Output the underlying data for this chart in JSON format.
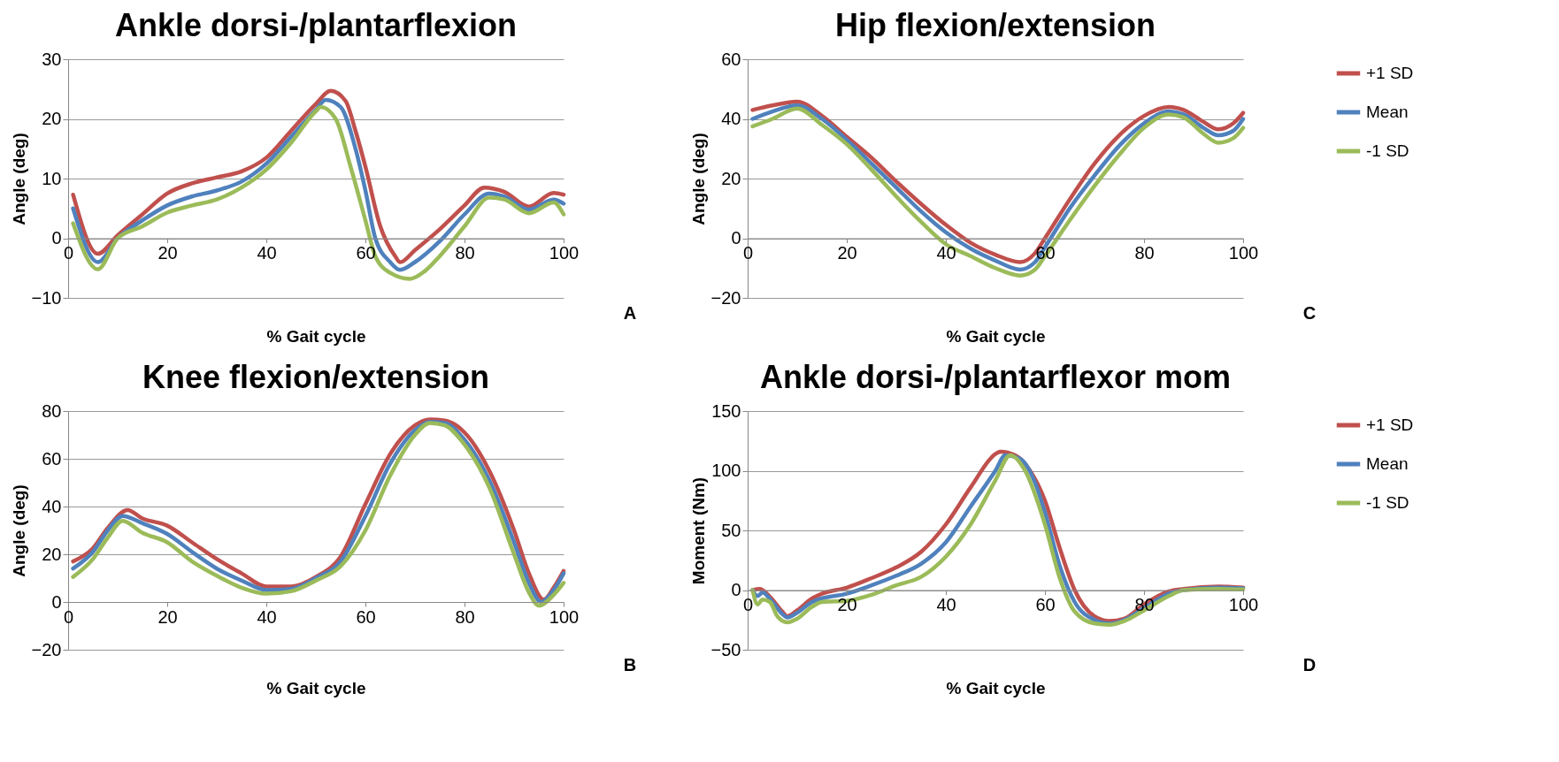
{
  "chart_data": [
    {
      "type": "line",
      "title": "Ankle dorsi-/plantarflexion",
      "xlabel": "% Gait cycle",
      "ylabel": "Angle (deg)",
      "xlim": [
        0,
        100
      ],
      "xticks": [
        0,
        20,
        40,
        60,
        80,
        100
      ],
      "ylim": [
        -10,
        30
      ],
      "yticks": [
        -10,
        0,
        10,
        20,
        30
      ],
      "grid": "y",
      "legend": "right",
      "annotations": [
        "A"
      ],
      "series": [
        {
          "name": "+1 SD",
          "color": "#c0504d",
          "x": [
            1,
            6,
            10,
            15,
            20,
            25,
            30,
            35,
            40,
            45,
            50,
            53,
            56,
            58,
            60,
            63,
            66,
            67,
            70,
            75,
            80,
            84,
            88,
            93,
            98,
            100
          ],
          "values": [
            7.3,
            -2.6,
            0.5,
            4,
            7.5,
            9.2,
            10.2,
            11.2,
            13.5,
            18,
            22.5,
            24.7,
            23,
            18,
            12,
            2,
            -3,
            -4,
            -2,
            1.5,
            5.5,
            8.5,
            7.8,
            5.3,
            7.6,
            7.3
          ]
        },
        {
          "name": "Mean",
          "color": "#4f81bd",
          "x": [
            1,
            6,
            10,
            15,
            20,
            25,
            30,
            35,
            40,
            45,
            50,
            52,
            55,
            58,
            60,
            62,
            65,
            67,
            70,
            75,
            80,
            85,
            88,
            93,
            98,
            100
          ],
          "values": [
            5,
            -4,
            0,
            3,
            5.5,
            7,
            8,
            9.5,
            12.5,
            17,
            21.5,
            23.2,
            22,
            15,
            8,
            0,
            -4,
            -5.3,
            -4,
            -0.5,
            4,
            7.5,
            7,
            4.8,
            6.5,
            5.8
          ]
        },
        {
          "name": "-1 SD",
          "color": "#9bbb59",
          "x": [
            1,
            6,
            10,
            15,
            20,
            25,
            30,
            35,
            40,
            45,
            50,
            51,
            54,
            57,
            60,
            62,
            65,
            69,
            72,
            75,
            80,
            85,
            88,
            93,
            98,
            100
          ],
          "values": [
            2.5,
            -5.2,
            0,
            2,
            4.3,
            5.5,
            6.5,
            8.5,
            11.5,
            16,
            21.3,
            22,
            20,
            12,
            3,
            -3,
            -5.8,
            -6.8,
            -5.5,
            -3,
            2,
            6.8,
            6.5,
            4.2,
            6,
            4
          ]
        }
      ]
    },
    {
      "type": "line",
      "title": "Hip flexion/extension",
      "xlabel": "% Gait cycle",
      "ylabel": "Angle (deg)",
      "xlim": [
        0,
        100
      ],
      "xticks": [
        0,
        20,
        40,
        60,
        80,
        100
      ],
      "ylim": [
        -20,
        60
      ],
      "yticks": [
        -20,
        0,
        20,
        40,
        60
      ],
      "grid": "y",
      "legend": "right",
      "annotations": [
        "C"
      ],
      "series": [
        {
          "name": "+1 SD",
          "color": "#c0504d",
          "x": [
            1,
            5,
            10,
            15,
            20,
            25,
            30,
            35,
            40,
            45,
            50,
            55,
            58,
            60,
            65,
            70,
            75,
            80,
            85,
            88,
            92,
            95,
            98,
            100
          ],
          "values": [
            43,
            44.5,
            45.8,
            41,
            34,
            27,
            19,
            11.5,
            4.5,
            -1.5,
            -5.5,
            -8,
            -5,
            0,
            13,
            25,
            34.5,
            41,
            44,
            43,
            39,
            36.5,
            38.5,
            42
          ]
        },
        {
          "name": "Mean",
          "color": "#4f81bd",
          "x": [
            1,
            5,
            10,
            15,
            20,
            25,
            30,
            35,
            40,
            45,
            50,
            55,
            58,
            60,
            65,
            70,
            75,
            80,
            85,
            88,
            92,
            95,
            98,
            100
          ],
          "values": [
            40,
            42.5,
            44.5,
            40,
            33,
            25,
            17,
            9,
            2,
            -3.5,
            -7.5,
            -10.5,
            -8,
            -3,
            10,
            21,
            31,
            38.5,
            42.5,
            41.5,
            37,
            34.5,
            36,
            40
          ]
        },
        {
          "name": "-1 SD",
          "color": "#9bbb59",
          "x": [
            1,
            5,
            10,
            15,
            20,
            25,
            30,
            35,
            40,
            45,
            50,
            55,
            58,
            60,
            65,
            70,
            75,
            80,
            85,
            88,
            92,
            95,
            98,
            100
          ],
          "values": [
            37.5,
            40,
            43.5,
            38,
            31.5,
            23,
            14,
            5.5,
            -2,
            -6,
            -10,
            -12.5,
            -10.5,
            -6,
            6,
            17.5,
            28,
            37,
            41.5,
            40.5,
            35,
            32,
            33.5,
            37
          ]
        }
      ]
    },
    {
      "type": "line",
      "title": "Knee flexion/extension",
      "xlabel": "% Gait cycle",
      "ylabel": "Angle (deg)",
      "xlim": [
        0,
        100
      ],
      "xticks": [
        0,
        20,
        40,
        60,
        80,
        100
      ],
      "ylim": [
        -20,
        80
      ],
      "yticks": [
        -20,
        0,
        20,
        40,
        60,
        80
      ],
      "grid": "y",
      "legend": "right",
      "annotations": [
        "B"
      ],
      "series": [
        {
          "name": "+1 SD",
          "color": "#c0504d",
          "x": [
            1,
            5,
            8,
            12,
            15,
            20,
            25,
            30,
            35,
            40,
            45,
            50,
            55,
            60,
            65,
            70,
            73,
            76,
            80,
            85,
            90,
            93,
            96,
            98,
            100
          ],
          "values": [
            17,
            22.5,
            31,
            38.5,
            35,
            32,
            25,
            18,
            12,
            6.5,
            6.5,
            10.5,
            19,
            41,
            62,
            74,
            76.5,
            76,
            71,
            55,
            30,
            12,
            1,
            6,
            13
          ]
        },
        {
          "name": "Mean",
          "color": "#4f81bd",
          "x": [
            1,
            5,
            8,
            11,
            15,
            20,
            25,
            30,
            35,
            40,
            45,
            50,
            55,
            60,
            65,
            70,
            73,
            76,
            80,
            85,
            90,
            93,
            95.5,
            98,
            100
          ],
          "values": [
            14,
            21,
            30,
            36,
            33,
            28.5,
            21,
            14,
            9,
            5,
            5.5,
            10,
            17,
            36,
            58,
            72,
            75.5,
            75,
            68,
            51,
            25,
            8,
            0,
            5,
            12
          ]
        },
        {
          "name": "-1 SD",
          "color": "#9bbb59",
          "x": [
            1,
            5,
            8,
            11,
            15,
            20,
            25,
            30,
            35,
            40,
            45,
            50,
            55,
            60,
            65,
            70,
            73,
            76,
            80,
            85,
            90,
            93,
            95,
            98,
            100
          ],
          "values": [
            10.5,
            18,
            27,
            34,
            29,
            25,
            17,
            11,
            6,
            3.5,
            4.5,
            9,
            15,
            30,
            53,
            70,
            75,
            74,
            66,
            48,
            20,
            4,
            -1.5,
            3,
            8
          ]
        }
      ]
    },
    {
      "type": "line",
      "title": "Ankle dorsi-/plantarflexor mom",
      "xlabel": "% Gait cycle",
      "ylabel": "Moment (Nm)",
      "xlim": [
        0,
        100
      ],
      "xticks": [
        0,
        20,
        40,
        60,
        80,
        100
      ],
      "ylim": [
        -50,
        150
      ],
      "yticks": [
        -50,
        0,
        50,
        100,
        150
      ],
      "grid": "y",
      "legend": "right",
      "annotations": [
        "D"
      ],
      "series": [
        {
          "name": "+1 SD",
          "color": "#c0504d",
          "x": [
            1,
            2.5,
            3,
            5,
            7,
            8,
            10,
            13,
            15,
            20,
            25,
            30,
            35,
            40,
            45,
            50,
            51,
            54,
            57,
            60,
            63,
            66,
            70,
            73,
            76,
            80,
            85,
            88,
            95,
            100
          ],
          "values": [
            0,
            1,
            0,
            -8,
            -18,
            -22,
            -17,
            -7,
            -3,
            2,
            10,
            19,
            32,
            55,
            86,
            114,
            116,
            113,
            100,
            75,
            35,
            0,
            -22,
            -26,
            -24,
            -12,
            -1,
            1,
            3,
            2
          ]
        },
        {
          "name": "Mean",
          "color": "#4f81bd",
          "x": [
            1,
            2,
            3,
            5,
            7,
            8,
            10,
            13,
            15,
            20,
            25,
            30,
            35,
            40,
            45,
            50,
            52,
            55,
            58,
            60,
            63,
            66,
            70,
            73,
            76,
            80,
            85,
            88,
            95,
            100
          ],
          "values": [
            0,
            -5,
            -2,
            -10,
            -20,
            -23,
            -19,
            -10,
            -7,
            -3,
            4,
            12,
            22,
            40,
            70,
            100,
            113,
            110,
            90,
            65,
            20,
            -10,
            -25,
            -28,
            -25,
            -15,
            -3,
            0,
            2,
            1.5
          ]
        },
        {
          "name": "-1 SD",
          "color": "#9bbb59",
          "x": [
            1,
            2,
            3,
            4.5,
            6,
            8,
            10,
            13,
            15,
            20,
            25,
            30,
            35,
            40,
            45,
            50,
            53,
            56,
            60,
            63,
            66,
            70,
            73,
            76,
            80,
            85,
            88,
            95,
            100
          ],
          "values": [
            0,
            -12,
            -8,
            -10,
            -22,
            -27,
            -24,
            -14,
            -10,
            -9,
            -4,
            4,
            11,
            28,
            55,
            92,
            113,
            100,
            55,
            10,
            -18,
            -28,
            -29,
            -26,
            -17,
            -5,
            0,
            1,
            0.5
          ]
        }
      ]
    }
  ]
}
